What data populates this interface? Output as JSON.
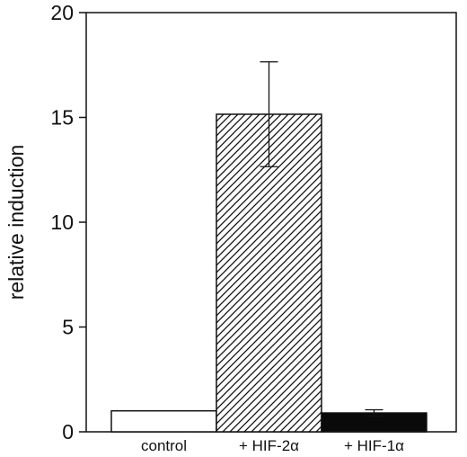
{
  "chart_data": {
    "type": "bar",
    "title": "",
    "xlabel": "",
    "ylabel": "relative induction",
    "categories": [
      "control",
      "+ HIF-2α",
      "+ HIF-1α"
    ],
    "values": [
      1.0,
      15.15,
      0.9
    ],
    "errors": [
      null,
      2.5,
      0.15
    ],
    "fills": [
      "white",
      "diagonal-hatch",
      "black"
    ],
    "ylim": [
      0,
      20
    ],
    "yticks": [
      0,
      5,
      10,
      15,
      20
    ],
    "ytick_labels": [
      "0",
      "5",
      "10",
      "15",
      "20"
    ],
    "grid": false,
    "legend": "none"
  }
}
